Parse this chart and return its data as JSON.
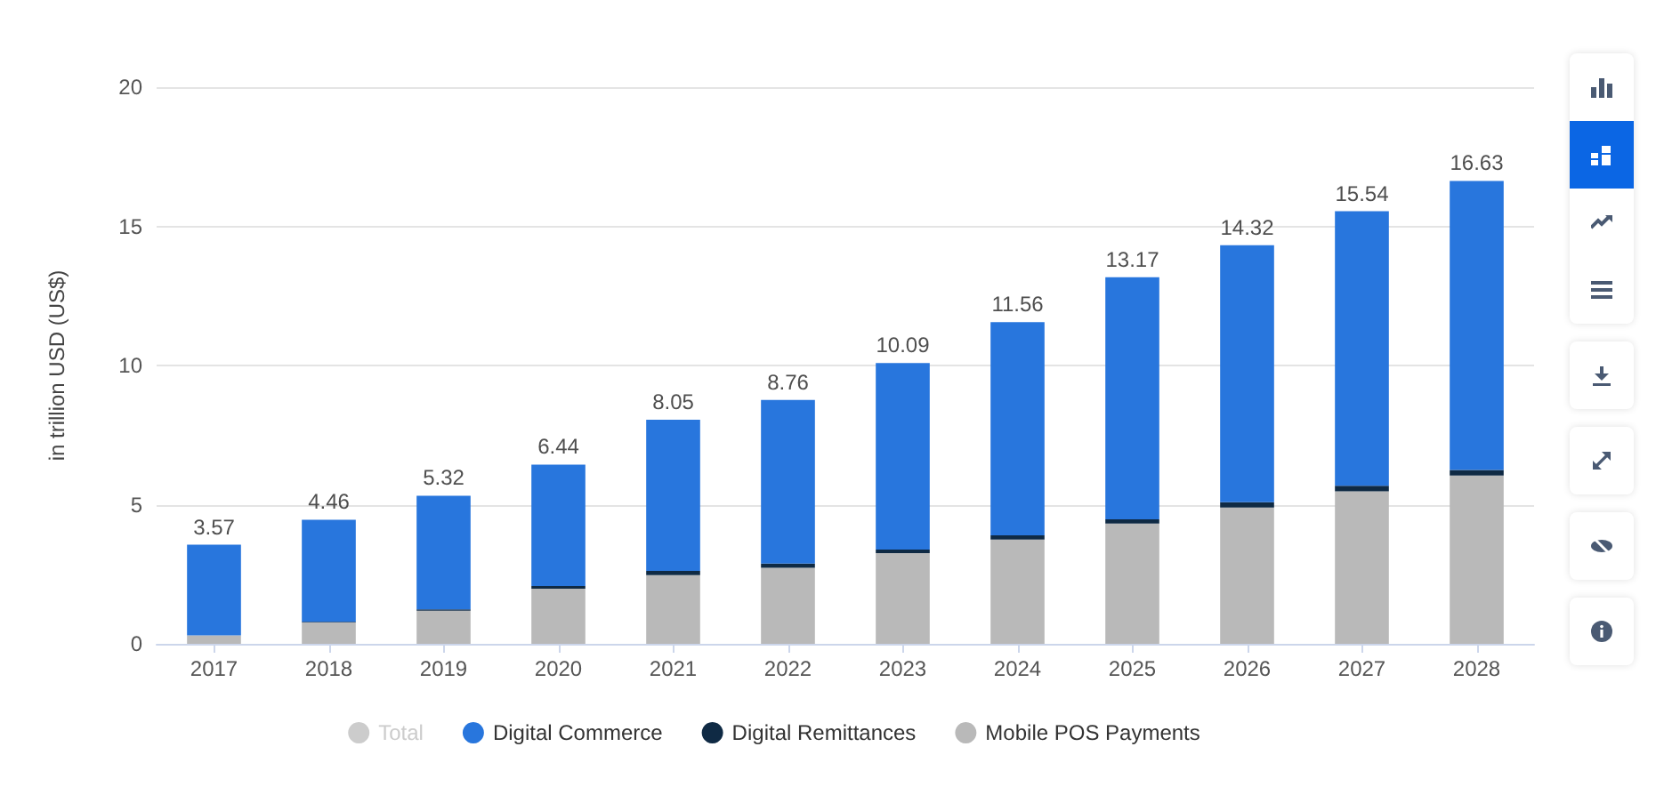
{
  "chart_data": {
    "type": "bar",
    "stacked": true,
    "ylabel": "in trillion USD (US$)",
    "categories": [
      "2017",
      "2018",
      "2019",
      "2020",
      "2021",
      "2022",
      "2023",
      "2024",
      "2025",
      "2026",
      "2027",
      "2028"
    ],
    "series": [
      {
        "name": "Mobile POS Payments",
        "color": "#b9b9b9",
        "values": [
          0.3,
          0.77,
          1.19,
          1.98,
          2.47,
          2.73,
          3.26,
          3.75,
          4.32,
          4.9,
          5.48,
          6.05
        ]
      },
      {
        "name": "Digital Remittances",
        "color": "#0f2a44",
        "values": [
          null,
          0.02,
          0.05,
          0.1,
          0.15,
          0.15,
          0.13,
          0.15,
          0.15,
          0.19,
          0.2,
          0.2
        ]
      },
      {
        "name": "Digital Commerce",
        "color": "#2876dd",
        "values": [
          3.26,
          3.67,
          4.08,
          4.36,
          5.43,
          5.88,
          6.7,
          7.66,
          8.7,
          9.23,
          9.86,
          10.38
        ]
      },
      {
        "name": "Total",
        "color": "#cccccc",
        "values": [
          null,
          null,
          null,
          null,
          null,
          null,
          null,
          null,
          null,
          null,
          null,
          null
        ]
      }
    ],
    "totals": [
      "3.57",
      "4.46",
      "5.32",
      "6.44",
      "8.05",
      "8.76",
      "10.09",
      "11.56",
      "13.17",
      "14.32",
      "15.54",
      "16.63"
    ],
    "ylim": [
      0,
      20
    ],
    "yticks": [
      0,
      5,
      10,
      15,
      20
    ],
    "grid": "y",
    "legend": "bottom"
  }
}
